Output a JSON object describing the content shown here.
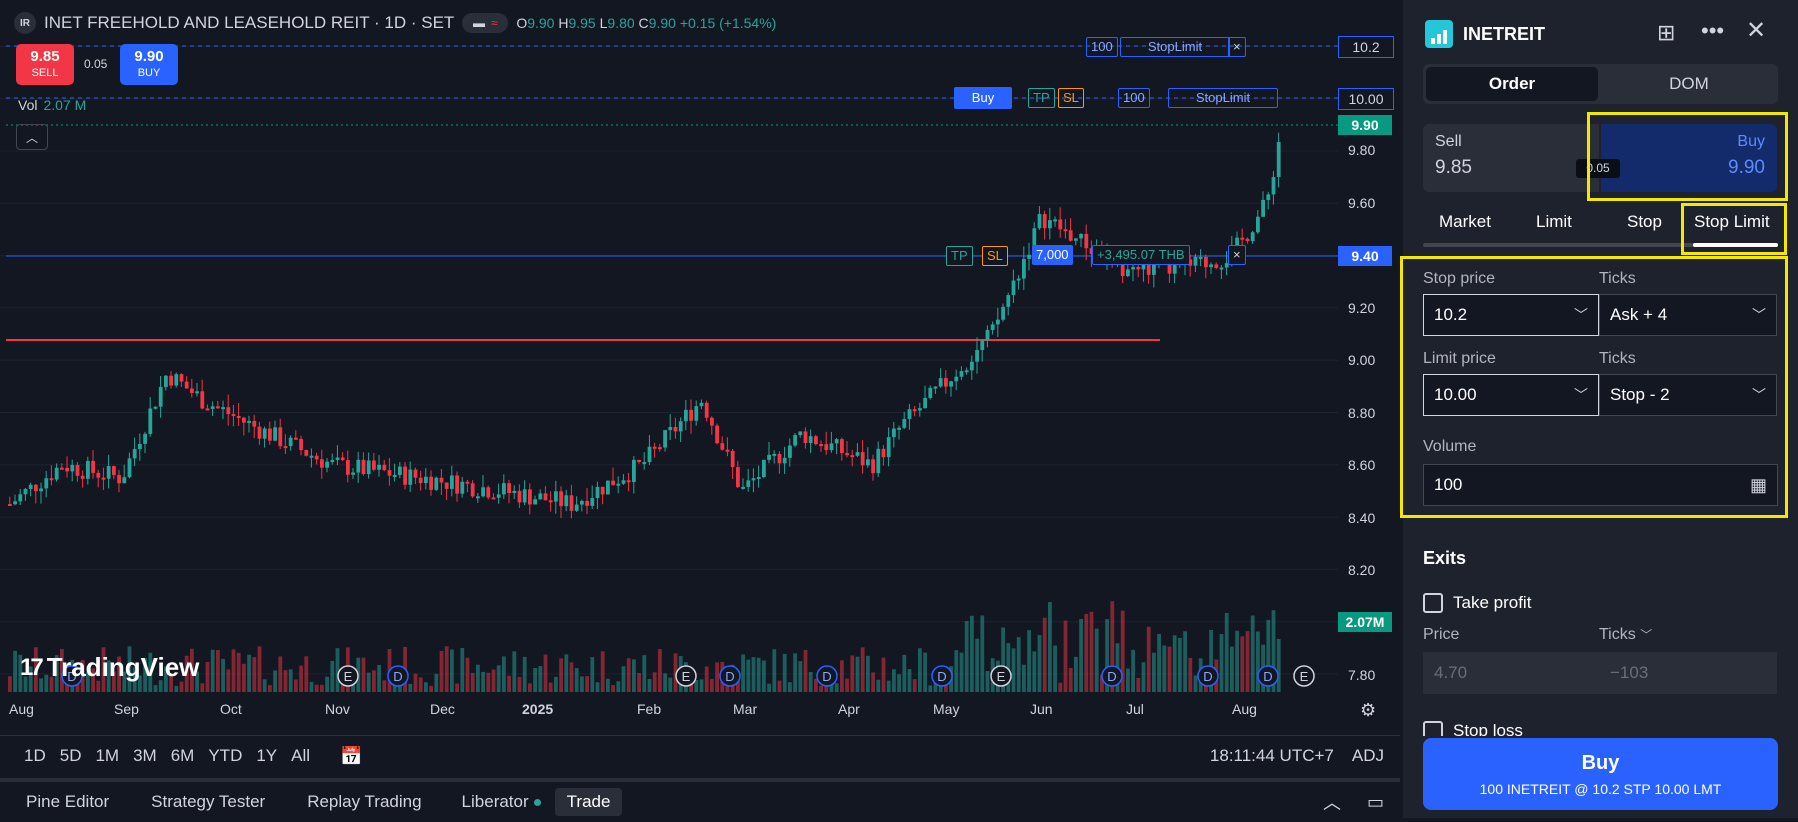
{
  "symbol": {
    "badge": "IR",
    "title": "INET FREEHOLD AND LEASEHOLD REIT · 1D · SET",
    "ohlc": {
      "o_label": "O",
      "o": "9.90",
      "h_label": "H",
      "h": "9.95",
      "l_label": "L",
      "l": "9.80",
      "c_label": "C",
      "c": "9.90",
      "change": "+0.15 (+1.54%)"
    }
  },
  "quote": {
    "sell_price": "9.85",
    "sell_label": "SELL",
    "spread": "0.05",
    "buy_price": "9.90",
    "buy_label": "BUY"
  },
  "volume": {
    "label": "Vol",
    "value": "2.07 M"
  },
  "chart_lines": {
    "order_line_1": {
      "qty": "100",
      "type": "StopLimit",
      "close": "×"
    },
    "order_line_2": {
      "buy_label": "Buy",
      "tp": "TP",
      "sl": "SL",
      "qty": "100",
      "type": "StopLimit"
    },
    "position": {
      "tp": "TP",
      "sl": "SL",
      "qty": "7,000",
      "pnl": "+3,495.07 THB",
      "close": "×"
    }
  },
  "price_axis": {
    "ticks": [
      "9.80",
      "9.60",
      "9.20",
      "9.00",
      "8.80",
      "8.60",
      "8.40",
      "8.20",
      "7.80"
    ],
    "tag_10_2": "10.2",
    "tag_10_00": "10.00",
    "tag_current": "9.90",
    "tag_position": "9.40",
    "tag_volume": "2.07M"
  },
  "time_axis": [
    "Aug",
    "Sep",
    "Oct",
    "Nov",
    "Dec",
    "2025",
    "Feb",
    "Mar",
    "Apr",
    "May",
    "Jun",
    "Jul",
    "Aug"
  ],
  "events": [
    "D",
    "E",
    "D",
    "E",
    "D",
    "D",
    "D",
    "E",
    "D",
    "D",
    "D",
    "E",
    "D"
  ],
  "brand": "TradingView",
  "ranges": [
    "1D",
    "5D",
    "1M",
    "3M",
    "6M",
    "YTD",
    "1Y",
    "All"
  ],
  "clock": "18:11:44 UTC+7",
  "adj": "ADJ",
  "bottom_tabs": [
    "Pine Editor",
    "Strategy Tester",
    "Replay Trading",
    "Liberator",
    "Trade"
  ],
  "panel": {
    "symbol": "INETREIT",
    "seg_order": "Order",
    "seg_dom": "DOM",
    "sell_label": "Sell",
    "sell_price": "9.85",
    "buy_label": "Buy",
    "buy_price": "9.90",
    "spread": "0.05",
    "order_types": [
      "Market",
      "Limit",
      "Stop",
      "Stop Limit"
    ],
    "stop_price_label": "Stop price",
    "stop_price": "10.2",
    "ticks_label": "Ticks",
    "stop_ticks": "Ask + 4",
    "limit_price_label": "Limit price",
    "limit_price": "10.00",
    "limit_ticks": "Stop - 2",
    "volume_label": "Volume",
    "volume": "100",
    "exits_label": "Exits",
    "take_profit_label": "Take profit",
    "tp_price_label": "Price",
    "tp_ticks_label": "Ticks",
    "tp_price": "4.70",
    "tp_ticks": "−103",
    "stop_loss_label": "Stop loss",
    "buy_button": "Buy",
    "buy_summary": "100 INETREIT @ 10.2 STP 10.00 LMT"
  },
  "colors": {
    "up": "#26a69a",
    "down": "#f23645",
    "accent": "#2962ff",
    "highlight": "#f5e800"
  }
}
